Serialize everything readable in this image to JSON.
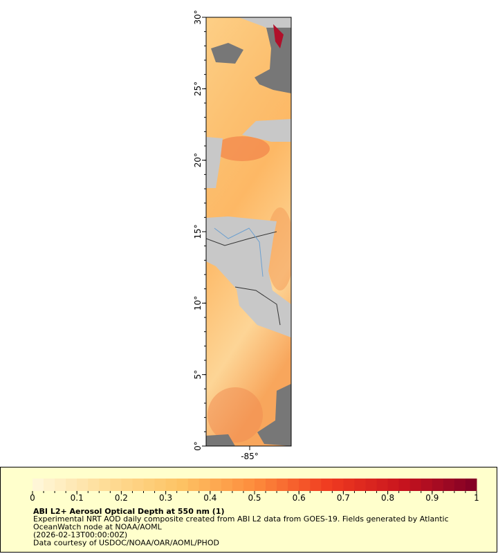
{
  "map": {
    "lat_labels": [
      "30°",
      "25°",
      "20°",
      "15°",
      "10°",
      "5°",
      "0°"
    ],
    "lon_labels": [
      "-85°"
    ]
  },
  "colorbar": {
    "ticks": [
      0,
      0.1,
      0.2,
      0.3,
      0.4,
      0.5,
      0.6,
      0.7,
      0.8,
      0.9,
      1
    ],
    "colors": [
      "#fff8dc",
      "#fedc96",
      "#fdc364",
      "#fd8c3c",
      "#f03b20",
      "#c8141e",
      "#800026"
    ]
  },
  "caption": {
    "title": "ABI L2+ Aerosol Optical Depth at 550 nm (1)",
    "lines": [
      "Experimental NRT AOD daily composite created from ABI L2 data from GOES-19. Fields generated by Atlantic",
      "OceanWatch node at NOAA/AOML",
      "(2026-02-13T00:00:00Z)",
      "Data courtesy of USDOC/NOAA/OAR/AOML/PHOD"
    ]
  }
}
